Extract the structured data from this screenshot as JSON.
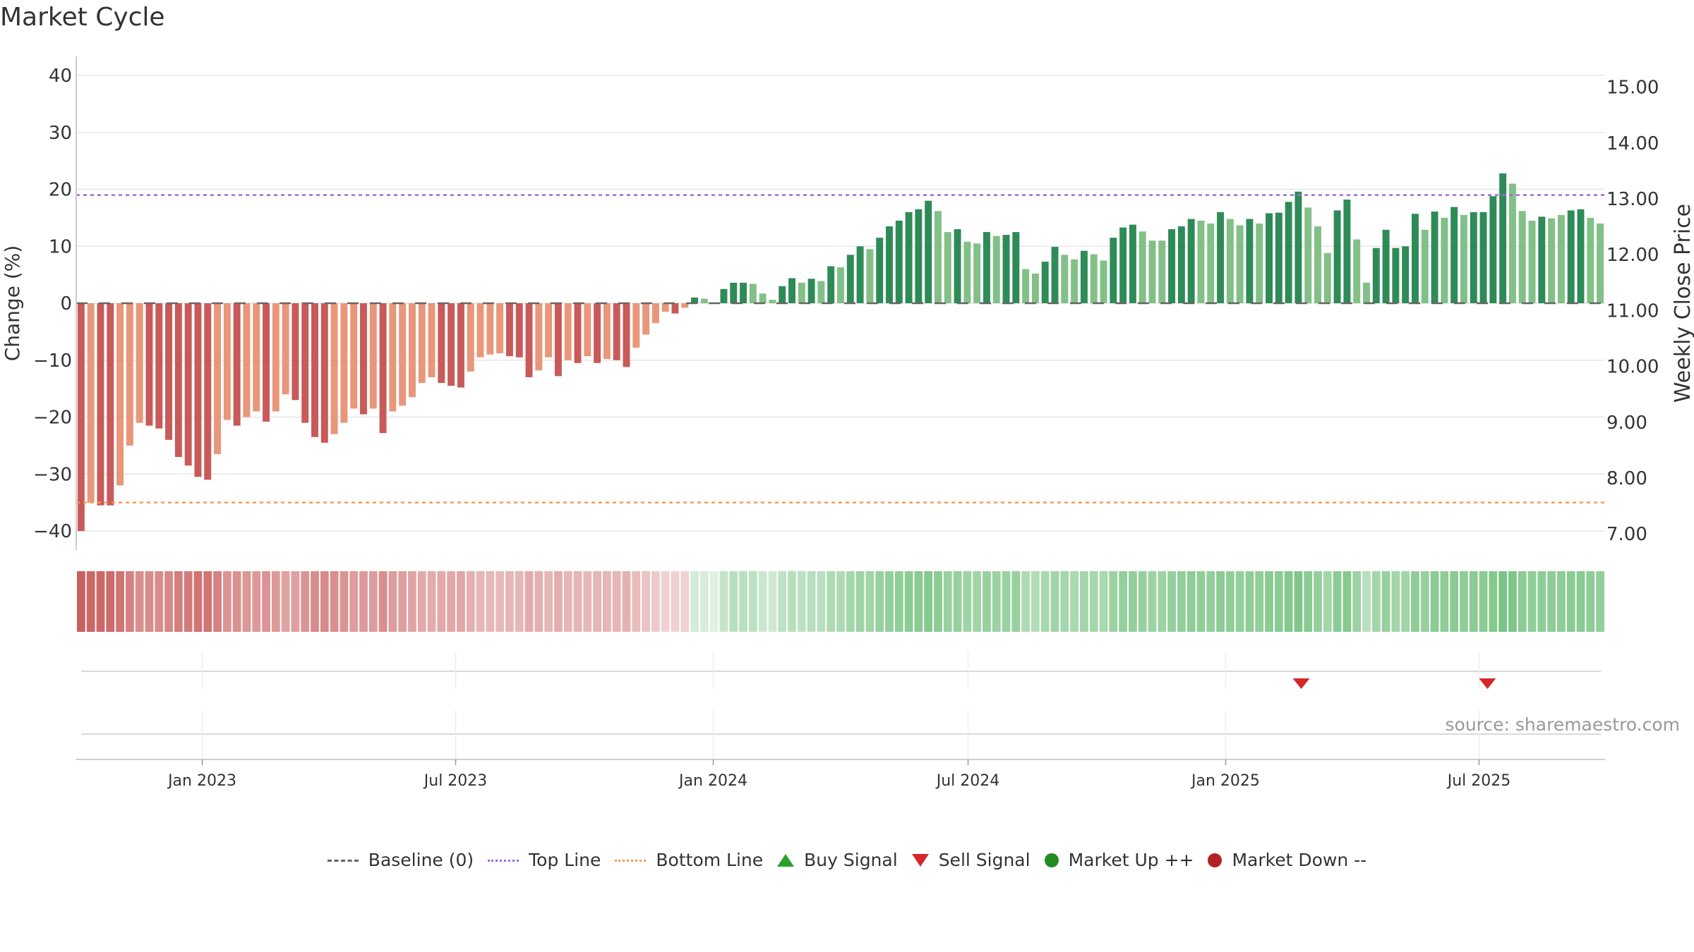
{
  "title": "Market Cycle",
  "source": "source: sharemaestro.com",
  "colors": {
    "dark_red": "#c85a5a",
    "light_red": "#e8977a",
    "dark_green": "#2e8b57",
    "light_green": "#82c087",
    "top_line": "#9e6bd6",
    "bottom_line": "#f39c5a",
    "baseline": "#666666",
    "sell": "#d62728",
    "buy": "#2ca02c",
    "market_up": "#228b22",
    "market_down": "#b22222"
  },
  "legend": [
    {
      "label": "Baseline (0)",
      "kind": "dash",
      "color": "#666666"
    },
    {
      "label": "Top Line",
      "kind": "dot-line",
      "color": "#9e6bd6"
    },
    {
      "label": "Bottom Line",
      "kind": "dot-line",
      "color": "#f39c5a"
    },
    {
      "label": "Buy Signal",
      "kind": "triangle-up",
      "color": "#2ca02c"
    },
    {
      "label": "Sell Signal",
      "kind": "triangle-down",
      "color": "#d62728"
    },
    {
      "label": "Market Up ++",
      "kind": "circle",
      "color": "#228b22"
    },
    {
      "label": "Market Down --",
      "kind": "circle",
      "color": "#b22222"
    }
  ],
  "chart_data": {
    "type": "bar",
    "title": "Market Cycle",
    "ylabel": "Change (%)",
    "y2label": "Weekly Close Price",
    "ylim": [
      -43,
      43
    ],
    "yticks": [
      40,
      30,
      20,
      10,
      0,
      -10,
      -20,
      -30,
      -40
    ],
    "ytick_labels": [
      "40",
      "30",
      "20",
      "10",
      "0",
      "−10",
      "−20",
      "−30",
      "−40"
    ],
    "y2lim": [
      6.8,
      15.4
    ],
    "y2ticks": [
      "15.00",
      "14.00",
      "13.00",
      "12.00",
      "11.00",
      "10.00",
      "9.00",
      "8.00",
      "7.00"
    ],
    "x_start": "2022-10-03",
    "x_end": "2025-09-29",
    "xticks": [
      {
        "date": "2023-01-01",
        "label": "Jan 2023"
      },
      {
        "date": "2023-07-01",
        "label": "Jul 2023"
      },
      {
        "date": "2024-01-01",
        "label": "Jan 2024"
      },
      {
        "date": "2024-07-01",
        "label": "Jul 2024"
      },
      {
        "date": "2025-01-01",
        "label": "Jan 2025"
      },
      {
        "date": "2025-07-01",
        "label": "Jul 2025"
      }
    ],
    "top_line": 19,
    "bottom_line": -35,
    "baseline": 0,
    "grid": true,
    "legend_position": "bottom",
    "values": [
      -40.0,
      -35.0,
      -35.5,
      -35.5,
      -32.0,
      -25.0,
      -21.0,
      -21.5,
      -22.0,
      -24.0,
      -27.0,
      -28.5,
      -30.5,
      -31.0,
      -26.5,
      -20.5,
      -21.5,
      -20.0,
      -19.0,
      -20.8,
      -19.0,
      -16.0,
      -17.0,
      -21.0,
      -23.5,
      -24.5,
      -23.0,
      -21.0,
      -18.5,
      -19.5,
      -18.5,
      -22.8,
      -19.0,
      -18.0,
      -16.5,
      -14.0,
      -13.0,
      -14.0,
      -14.5,
      -14.8,
      -12.0,
      -9.5,
      -9.0,
      -8.8,
      -9.3,
      -9.5,
      -13.0,
      -11.8,
      -9.5,
      -12.8,
      -10.0,
      -10.5,
      -9.3,
      -10.5,
      -9.8,
      -10.0,
      -11.2,
      -7.8,
      -5.5,
      -3.5,
      -1.5,
      -1.8,
      -0.8,
      1.0,
      0.8,
      0.0,
      2.5,
      3.6,
      3.6,
      3.4,
      1.7,
      0.6,
      3.0,
      4.4,
      3.6,
      4.3,
      3.9,
      6.5,
      6.3,
      8.5,
      10.0,
      9.5,
      11.5,
      13.5,
      14.5,
      16.0,
      16.5,
      18.0,
      16.2,
      12.5,
      13.0,
      10.8,
      10.5,
      12.5,
      11.8,
      12.0,
      12.5,
      6.0,
      5.2,
      7.3,
      9.9,
      8.5,
      7.7,
      9.2,
      8.6,
      7.5,
      11.5,
      13.3,
      13.8,
      12.6,
      11.0,
      11.0,
      13.0,
      13.5,
      14.8,
      14.5,
      14.0,
      16.0,
      14.8,
      13.7,
      14.8,
      14.0,
      15.8,
      15.9,
      17.8,
      19.6,
      16.8,
      13.5,
      8.8,
      16.3,
      18.2,
      11.2,
      3.6,
      9.7,
      12.9,
      9.7,
      10.0,
      15.7,
      12.9,
      16.1,
      15.0,
      16.9,
      15.5,
      16.0,
      16.0,
      18.8,
      22.8,
      21.0,
      16.2,
      14.5,
      15.2,
      14.9,
      15.5,
      16.3,
      16.5,
      15.0,
      14.0
    ],
    "bar_shade": [
      "d",
      "l",
      "d",
      "d",
      "l",
      "l",
      "l",
      "d",
      "d",
      "d",
      "d",
      "d",
      "d",
      "d",
      "l",
      "l",
      "d",
      "l",
      "l",
      "d",
      "l",
      "l",
      "d",
      "d",
      "d",
      "d",
      "l",
      "l",
      "l",
      "d",
      "l",
      "d",
      "l",
      "l",
      "l",
      "l",
      "l",
      "d",
      "d",
      "d",
      "l",
      "l",
      "l",
      "l",
      "d",
      "d",
      "d",
      "l",
      "l",
      "d",
      "l",
      "d",
      "l",
      "d",
      "l",
      "d",
      "d",
      "l",
      "l",
      "l",
      "l",
      "d",
      "l",
      "d",
      "l",
      "l",
      "d",
      "d",
      "d",
      "l",
      "l",
      "l",
      "d",
      "d",
      "l",
      "d",
      "l",
      "d",
      "l",
      "d",
      "d",
      "l",
      "d",
      "d",
      "d",
      "d",
      "d",
      "d",
      "l",
      "l",
      "d",
      "l",
      "l",
      "d",
      "l",
      "d",
      "d",
      "l",
      "l",
      "d",
      "d",
      "l",
      "l",
      "d",
      "l",
      "l",
      "d",
      "d",
      "d",
      "l",
      "l",
      "l",
      "d",
      "d",
      "d",
      "l",
      "l",
      "d",
      "l",
      "l",
      "d",
      "l",
      "d",
      "d",
      "d",
      "d",
      "l",
      "l",
      "l",
      "d",
      "d",
      "l",
      "l",
      "d",
      "d",
      "d",
      "d",
      "d",
      "l",
      "d",
      "l",
      "d",
      "l",
      "d",
      "d",
      "d",
      "d",
      "l",
      "l",
      "l",
      "d",
      "l",
      "l",
      "d",
      "d",
      "l",
      "l"
    ],
    "strength": [
      0.95,
      0.9,
      0.9,
      0.88,
      0.8,
      0.7,
      0.6,
      0.62,
      0.62,
      0.65,
      0.72,
      0.75,
      0.8,
      0.8,
      0.7,
      0.56,
      0.58,
      0.54,
      0.52,
      0.56,
      0.52,
      0.45,
      0.47,
      0.56,
      0.62,
      0.64,
      0.6,
      0.56,
      0.5,
      0.52,
      0.5,
      0.6,
      0.5,
      0.48,
      0.45,
      0.4,
      0.38,
      0.4,
      0.41,
      0.42,
      0.35,
      0.3,
      0.29,
      0.28,
      0.3,
      0.3,
      0.38,
      0.35,
      0.3,
      0.37,
      0.3,
      0.31,
      0.29,
      0.31,
      0.3,
      0.3,
      0.33,
      0.25,
      0.2,
      0.15,
      0.1,
      0.1,
      0.08,
      0.15,
      0.12,
      0.05,
      0.3,
      0.4,
      0.4,
      0.38,
      0.25,
      0.2,
      0.35,
      0.42,
      0.38,
      0.42,
      0.4,
      0.5,
      0.5,
      0.58,
      0.64,
      0.62,
      0.7,
      0.76,
      0.78,
      0.82,
      0.84,
      0.88,
      0.82,
      0.7,
      0.72,
      0.64,
      0.62,
      0.7,
      0.68,
      0.68,
      0.7,
      0.5,
      0.45,
      0.55,
      0.62,
      0.58,
      0.55,
      0.6,
      0.58,
      0.55,
      0.68,
      0.74,
      0.76,
      0.72,
      0.66,
      0.66,
      0.74,
      0.76,
      0.8,
      0.78,
      0.76,
      0.82,
      0.78,
      0.75,
      0.78,
      0.76,
      0.82,
      0.82,
      0.88,
      0.92,
      0.84,
      0.74,
      0.6,
      0.82,
      0.86,
      0.66,
      0.4,
      0.6,
      0.72,
      0.6,
      0.62,
      0.8,
      0.72,
      0.82,
      0.78,
      0.84,
      0.8,
      0.82,
      0.82,
      0.88,
      0.98,
      0.94,
      0.82,
      0.78,
      0.8,
      0.79,
      0.8,
      0.83,
      0.84,
      0.8,
      0.76
    ],
    "sell_signals": [
      {
        "date": "2025-02-24"
      },
      {
        "date": "2025-07-07"
      }
    ],
    "buy_signals": []
  }
}
